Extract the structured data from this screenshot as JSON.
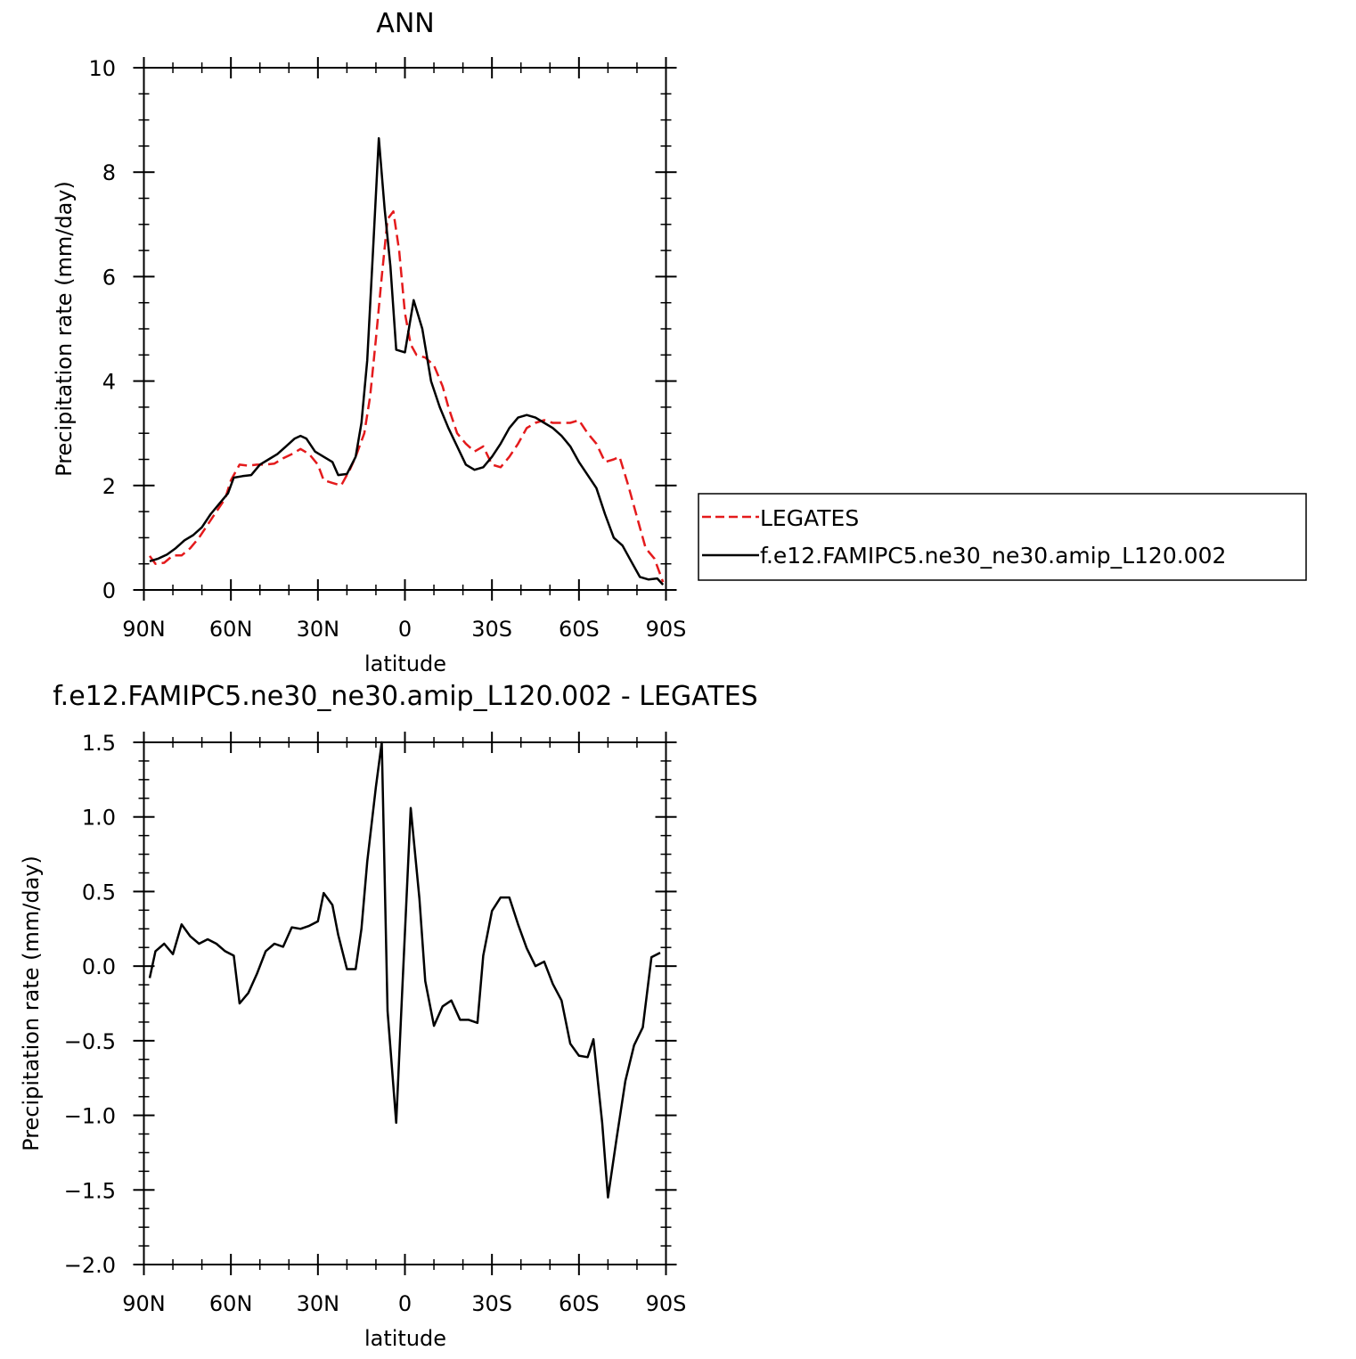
{
  "chart_data": [
    {
      "type": "line",
      "title": "ANN",
      "xlabel": "latitude",
      "ylabel": "Precipitation rate (mm/day)",
      "xlim": [
        -90,
        90
      ],
      "ylim": [
        0,
        10
      ],
      "x_ticks": [
        -90,
        -60,
        -30,
        0,
        30,
        60,
        90
      ],
      "x_tick_labels": [
        "90N",
        "60N",
        "30N",
        "0",
        "30S",
        "60S",
        "90S"
      ],
      "y_ticks": [
        0,
        2,
        4,
        6,
        8,
        10
      ],
      "y_tick_labels": [
        "0",
        "2",
        "4",
        "6",
        "8",
        "10"
      ],
      "x_minor_step": 10,
      "y_minor_step": 0.5,
      "legend_position": "right",
      "series": [
        {
          "name": "LEGATES",
          "color": "#e41a1c",
          "dash": "dashed",
          "points": [
            [
              -88,
              0.65
            ],
            [
              -86,
              0.5
            ],
            [
              -83,
              0.52
            ],
            [
              -80,
              0.66
            ],
            [
              -77,
              0.66
            ],
            [
              -74,
              0.8
            ],
            [
              -71,
              1.0
            ],
            [
              -68,
              1.25
            ],
            [
              -65,
              1.5
            ],
            [
              -62,
              1.75
            ],
            [
              -60,
              2.1
            ],
            [
              -57,
              2.4
            ],
            [
              -54,
              2.38
            ],
            [
              -51,
              2.4
            ],
            [
              -48,
              2.4
            ],
            [
              -45,
              2.42
            ],
            [
              -42,
              2.52
            ],
            [
              -39,
              2.6
            ],
            [
              -36,
              2.7
            ],
            [
              -33,
              2.6
            ],
            [
              -30,
              2.4
            ],
            [
              -28,
              2.1
            ],
            [
              -25,
              2.05
            ],
            [
              -22,
              2.0
            ],
            [
              -19,
              2.3
            ],
            [
              -17,
              2.55
            ],
            [
              -14,
              3.0
            ],
            [
              -12,
              3.7
            ],
            [
              -10,
              4.8
            ],
            [
              -8,
              6.0
            ],
            [
              -6,
              7.1
            ],
            [
              -4,
              7.25
            ],
            [
              -2,
              6.5
            ],
            [
              0,
              5.3
            ],
            [
              2,
              4.7
            ],
            [
              4,
              4.5
            ],
            [
              7,
              4.45
            ],
            [
              10,
              4.3
            ],
            [
              13,
              3.9
            ],
            [
              15,
              3.5
            ],
            [
              18,
              3.0
            ],
            [
              21,
              2.8
            ],
            [
              24,
              2.65
            ],
            [
              27,
              2.75
            ],
            [
              30,
              2.4
            ],
            [
              33,
              2.35
            ],
            [
              36,
              2.55
            ],
            [
              39,
              2.8
            ],
            [
              42,
              3.1
            ],
            [
              45,
              3.2
            ],
            [
              48,
              3.25
            ],
            [
              51,
              3.2
            ],
            [
              54,
              3.2
            ],
            [
              57,
              3.2
            ],
            [
              60,
              3.25
            ],
            [
              63,
              3.0
            ],
            [
              66,
              2.8
            ],
            [
              69,
              2.45
            ],
            [
              72,
              2.5
            ],
            [
              74,
              2.55
            ],
            [
              77,
              2.0
            ],
            [
              80,
              1.4
            ],
            [
              83,
              0.8
            ],
            [
              86,
              0.6
            ],
            [
              89,
              0.15
            ]
          ]
        },
        {
          "name": "f.e12.FAMIPC5.ne30_ne30.amip_L120.002",
          "color": "#000000",
          "dash": "solid",
          "points": [
            [
              -88,
              0.55
            ],
            [
              -85,
              0.6
            ],
            [
              -82,
              0.68
            ],
            [
              -79,
              0.8
            ],
            [
              -76,
              0.95
            ],
            [
              -73,
              1.05
            ],
            [
              -70,
              1.2
            ],
            [
              -67,
              1.45
            ],
            [
              -64,
              1.65
            ],
            [
              -61,
              1.85
            ],
            [
              -59,
              2.15
            ],
            [
              -56,
              2.18
            ],
            [
              -53,
              2.2
            ],
            [
              -50,
              2.4
            ],
            [
              -47,
              2.5
            ],
            [
              -44,
              2.6
            ],
            [
              -41,
              2.75
            ],
            [
              -38,
              2.9
            ],
            [
              -36,
              2.95
            ],
            [
              -34,
              2.9
            ],
            [
              -31,
              2.65
            ],
            [
              -28,
              2.55
            ],
            [
              -25,
              2.45
            ],
            [
              -23,
              2.2
            ],
            [
              -20,
              2.22
            ],
            [
              -17,
              2.55
            ],
            [
              -15,
              3.2
            ],
            [
              -13,
              4.4
            ],
            [
              -11,
              6.5
            ],
            [
              -9,
              8.65
            ],
            [
              -7,
              7.3
            ],
            [
              -5,
              6.2
            ],
            [
              -3,
              4.6
            ],
            [
              0,
              4.55
            ],
            [
              3,
              5.55
            ],
            [
              6,
              5.0
            ],
            [
              9,
              4.0
            ],
            [
              12,
              3.5
            ],
            [
              15,
              3.1
            ],
            [
              18,
              2.75
            ],
            [
              21,
              2.4
            ],
            [
              24,
              2.3
            ],
            [
              27,
              2.35
            ],
            [
              30,
              2.55
            ],
            [
              33,
              2.8
            ],
            [
              36,
              3.1
            ],
            [
              39,
              3.3
            ],
            [
              42,
              3.35
            ],
            [
              45,
              3.3
            ],
            [
              48,
              3.2
            ],
            [
              51,
              3.1
            ],
            [
              54,
              2.95
            ],
            [
              57,
              2.75
            ],
            [
              60,
              2.45
            ],
            [
              63,
              2.2
            ],
            [
              66,
              1.95
            ],
            [
              69,
              1.45
            ],
            [
              72,
              1.0
            ],
            [
              75,
              0.85
            ],
            [
              78,
              0.55
            ],
            [
              81,
              0.25
            ],
            [
              84,
              0.2
            ],
            [
              87,
              0.22
            ],
            [
              89,
              0.1
            ]
          ]
        }
      ]
    },
    {
      "type": "line",
      "title": "f.e12.FAMIPC5.ne30_ne30.amip_L120.002 - LEGATES",
      "xlabel": "latitude",
      "ylabel": "Precipitation rate (mm/day)",
      "xlim": [
        -90,
        90
      ],
      "ylim": [
        -2.0,
        1.5
      ],
      "x_ticks": [
        -90,
        -60,
        -30,
        0,
        30,
        60,
        90
      ],
      "x_tick_labels": [
        "90N",
        "60N",
        "30N",
        "0",
        "30S",
        "60S",
        "90S"
      ],
      "y_ticks": [
        -2.0,
        -1.5,
        -1.0,
        -0.5,
        0.0,
        0.5,
        1.0,
        1.5
      ],
      "y_tick_labels": [
        "−2.0",
        "−1.5",
        "−1.0",
        "−0.5",
        "0.0",
        "0.5",
        "1.0",
        "1.5"
      ],
      "x_minor_step": 10,
      "y_minor_step": 0.125,
      "series": [
        {
          "color": "#000000",
          "dash": "solid",
          "points": [
            [
              -88,
              -0.08
            ],
            [
              -86,
              0.1
            ],
            [
              -83,
              0.15
            ],
            [
              -80,
              0.08
            ],
            [
              -77,
              0.28
            ],
            [
              -74,
              0.2
            ],
            [
              -71,
              0.15
            ],
            [
              -68,
              0.18
            ],
            [
              -65,
              0.15
            ],
            [
              -62,
              0.1
            ],
            [
              -59,
              0.07
            ],
            [
              -57,
              -0.25
            ],
            [
              -54,
              -0.18
            ],
            [
              -51,
              -0.05
            ],
            [
              -48,
              0.1
            ],
            [
              -45,
              0.15
            ],
            [
              -42,
              0.13
            ],
            [
              -39,
              0.26
            ],
            [
              -36,
              0.25
            ],
            [
              -33,
              0.27
            ],
            [
              -30,
              0.3
            ],
            [
              -28,
              0.49
            ],
            [
              -25,
              0.41
            ],
            [
              -23,
              0.21
            ],
            [
              -20,
              -0.02
            ],
            [
              -17,
              -0.02
            ],
            [
              -15,
              0.25
            ],
            [
              -13,
              0.7
            ],
            [
              -10,
              1.2
            ],
            [
              -8,
              1.5
            ],
            [
              -6,
              -0.3
            ],
            [
              -3,
              -1.05
            ],
            [
              -1,
              -0.2
            ],
            [
              2,
              1.06
            ],
            [
              5,
              0.45
            ],
            [
              7,
              -0.1
            ],
            [
              10,
              -0.4
            ],
            [
              13,
              -0.27
            ],
            [
              16,
              -0.23
            ],
            [
              19,
              -0.36
            ],
            [
              22,
              -0.36
            ],
            [
              25,
              -0.38
            ],
            [
              27,
              0.07
            ],
            [
              30,
              0.37
            ],
            [
              33,
              0.46
            ],
            [
              36,
              0.46
            ],
            [
              39,
              0.28
            ],
            [
              42,
              0.12
            ],
            [
              45,
              0.0
            ],
            [
              48,
              0.03
            ],
            [
              51,
              -0.12
            ],
            [
              54,
              -0.23
            ],
            [
              57,
              -0.52
            ],
            [
              60,
              -0.6
            ],
            [
              63,
              -0.61
            ],
            [
              65,
              -0.49
            ],
            [
              68,
              -1.05
            ],
            [
              70,
              -1.55
            ],
            [
              73,
              -1.15
            ],
            [
              76,
              -0.77
            ],
            [
              79,
              -0.53
            ],
            [
              82,
              -0.41
            ],
            [
              85,
              0.06
            ],
            [
              88,
              0.09
            ]
          ]
        }
      ]
    }
  ]
}
